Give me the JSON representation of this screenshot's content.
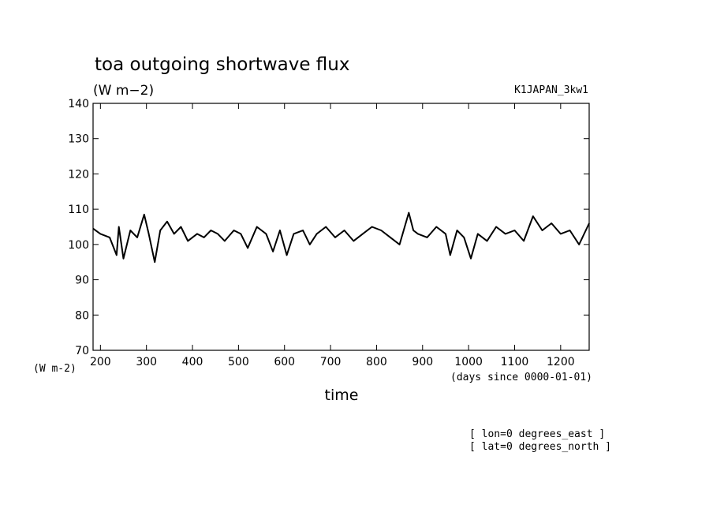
{
  "chart_data": {
    "type": "line",
    "title": "toa outgoing shortwave flux",
    "units": "(W m−2)",
    "experiment": "K1JAPAN_3kw1",
    "xlabel": "time",
    "xunits": "(days since 0000-01-01)",
    "ylabel_units": "(W m-2)",
    "ylim": [
      70,
      140
    ],
    "yticks": [
      70,
      80,
      90,
      100,
      110,
      120,
      130,
      140
    ],
    "xlim": [
      184,
      1262
    ],
    "xticks": [
      200,
      300,
      400,
      500,
      600,
      700,
      800,
      900,
      1000,
      1100,
      1200
    ],
    "grid": false,
    "annotations": [
      "[ lon=0 degrees_east ]",
      "[ lat=0 degrees_north ]"
    ],
    "series": [
      {
        "x": [
          184,
          200,
          220,
          235,
          240,
          250,
          265,
          280,
          295,
          305,
          318,
          330,
          345,
          360,
          375,
          390,
          410,
          425,
          440,
          455,
          470,
          490,
          505,
          520,
          540,
          560,
          575,
          590,
          605,
          620,
          640,
          655,
          670,
          690,
          710,
          730,
          750,
          770,
          790,
          810,
          830,
          850,
          870,
          880,
          890,
          910,
          930,
          950,
          960,
          975,
          990,
          1005,
          1020,
          1040,
          1060,
          1080,
          1100,
          1120,
          1140,
          1160,
          1180,
          1200,
          1220,
          1240,
          1262
        ],
        "y": [
          104.5,
          103,
          102,
          97,
          105,
          96,
          104,
          102,
          108.5,
          103,
          95,
          104,
          106.5,
          103,
          105,
          101,
          103,
          102,
          104,
          103,
          101,
          104,
          103,
          99,
          105,
          103,
          98,
          104,
          97,
          103,
          104,
          100,
          103,
          105,
          102,
          104,
          101,
          103,
          105,
          104,
          102,
          100,
          109,
          104,
          103,
          102,
          105,
          103,
          97,
          104,
          102,
          96,
          103,
          101,
          105,
          103,
          104,
          101,
          108,
          104,
          106,
          103,
          104,
          100,
          106
        ]
      }
    ]
  }
}
